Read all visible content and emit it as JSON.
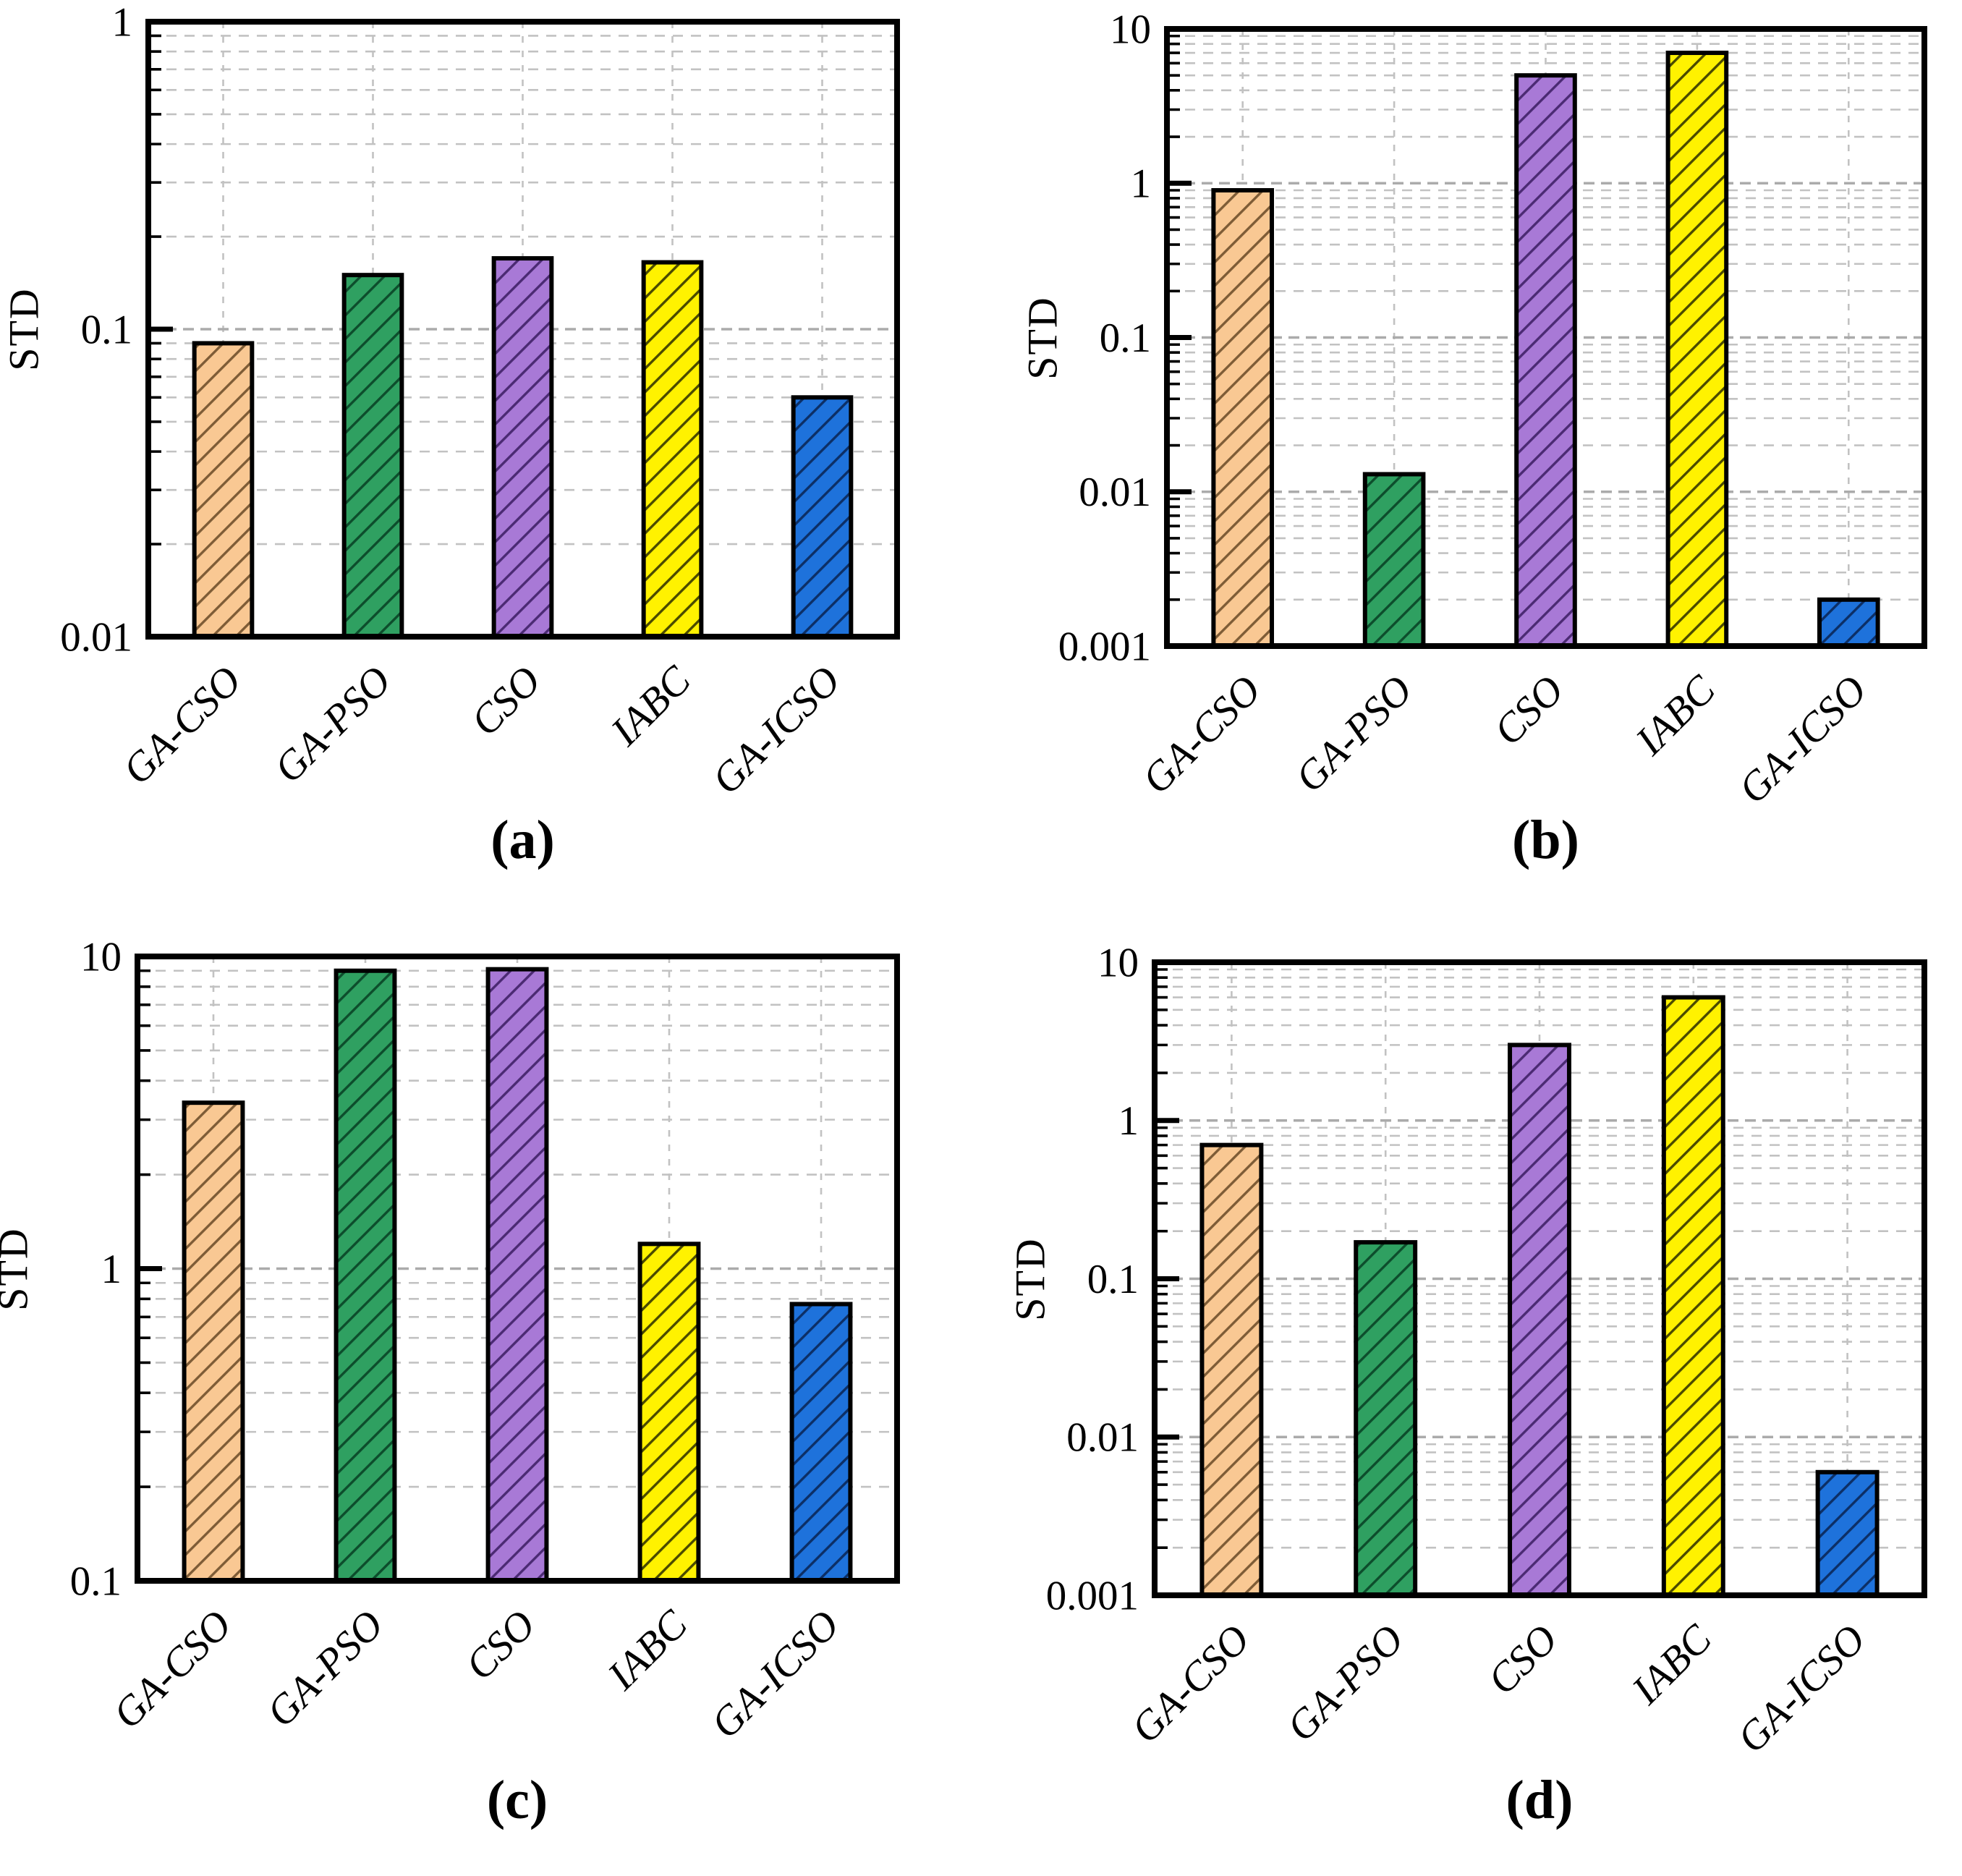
{
  "figure_title": "",
  "shared": {
    "ylabel": "STD",
    "categories": [
      "GA-CSO",
      "GA-PSO",
      "CSO",
      "IABC",
      "GA-ICSO"
    ]
  },
  "palette": {
    "bar_fills": [
      "#F9C893",
      "#2FA061",
      "#A879D6",
      "#FFF200",
      "#1E72DB"
    ],
    "bar_hatches": [
      "#7E5C36",
      "#0D4D2C",
      "#4B2A73",
      "#4A4A00",
      "#0C2F66"
    ],
    "bar_border": "#000000",
    "grid_minor": "#C2C2C2",
    "grid_major": "#ABABAB",
    "axis": "#000000",
    "background": "#FFFFFF"
  },
  "chart_data": [
    {
      "id": "a",
      "type": "bar",
      "title": "(a)",
      "ylabel": "STD",
      "yscale": "log",
      "ylim": [
        0.01,
        1
      ],
      "ytick_labels": [
        "1",
        "0.1",
        "0.01"
      ],
      "categories": [
        "GA-CSO",
        "GA-PSO",
        "CSO",
        "IABC",
        "GA-ICSO"
      ],
      "values": [
        0.09,
        0.15,
        0.17,
        0.165,
        0.06
      ],
      "grid": true,
      "legend_position": "none"
    },
    {
      "id": "b",
      "type": "bar",
      "title": "(b)",
      "ylabel": "STD",
      "yscale": "log",
      "ylim": [
        0.001,
        10
      ],
      "ytick_labels": [
        "10",
        "1",
        "0.1",
        "0.01",
        "0.001"
      ],
      "categories": [
        "GA-CSO",
        "GA-PSO",
        "CSO",
        "IABC",
        "GA-ICSO"
      ],
      "values": [
        0.9,
        0.013,
        5,
        7,
        0.002
      ],
      "grid": true,
      "legend_position": "none"
    },
    {
      "id": "c",
      "type": "bar",
      "title": "(c)",
      "ylabel": "STD",
      "yscale": "log",
      "ylim": [
        0.1,
        10
      ],
      "ytick_labels": [
        "10",
        "1",
        "0.1"
      ],
      "categories": [
        "GA-CSO",
        "GA-PSO",
        "CSO",
        "IABC",
        "GA-ICSO"
      ],
      "values": [
        3.4,
        9,
        9.1,
        1.2,
        0.77
      ],
      "grid": true,
      "legend_position": "none"
    },
    {
      "id": "d",
      "type": "bar",
      "title": "(d)",
      "ylabel": "STD",
      "yscale": "log",
      "ylim": [
        0.001,
        10
      ],
      "ytick_labels": [
        "10",
        "1",
        "0.1",
        "0.01",
        "0.001"
      ],
      "categories": [
        "GA-CSO",
        "GA-PSO",
        "CSO",
        "IABC",
        "GA-ICSO"
      ],
      "values": [
        0.7,
        0.17,
        3,
        6,
        0.006
      ],
      "grid": true,
      "legend_position": "none"
    }
  ]
}
